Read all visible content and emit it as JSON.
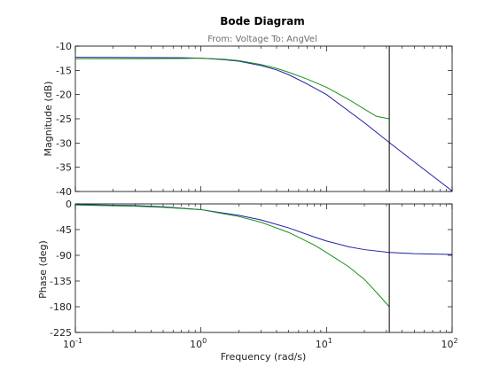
{
  "chart_data": {
    "type": "line",
    "title": "Bode Diagram",
    "subtitle": "From: Voltage  To: AngVel",
    "xlabel": "Frequency  (rad/s)",
    "xscale": "log",
    "xlim": [
      0.1,
      100
    ],
    "x_ticks": [
      {
        "base": "10",
        "exp": "-1",
        "value": 0.1
      },
      {
        "base": "10",
        "exp": "0",
        "value": 1
      },
      {
        "base": "10",
        "exp": "1",
        "value": 10
      },
      {
        "base": "10",
        "exp": "2",
        "value": 100
      }
    ],
    "marker_frequency": 31.6,
    "colors": {
      "blue": "#1f1fa8",
      "green": "#1a8f1a",
      "marker": "#000000",
      "axes": "#000000"
    },
    "panels": [
      {
        "id": "magnitude",
        "ylabel": "Magnitude (dB)",
        "ylim": [
          -40,
          -10
        ],
        "y_ticks": [
          "-10",
          "-15",
          "-20",
          "-25",
          "-30",
          "-35",
          "-40"
        ],
        "series": [
          {
            "color": "blue",
            "points": [
              [
                0.1,
                -12.3
              ],
              [
                0.3,
                -12.35
              ],
              [
                0.7,
                -12.4
              ],
              [
                1,
                -12.5
              ],
              [
                1.5,
                -12.8
              ],
              [
                2,
                -13.1
              ],
              [
                3,
                -14.0
              ],
              [
                4,
                -14.9
              ],
              [
                5,
                -15.9
              ],
              [
                7,
                -17.8
              ],
              [
                10,
                -20.0
              ],
              [
                15,
                -23.4
              ],
              [
                20,
                -25.8
              ],
              [
                31.6,
                -29.9
              ],
              [
                50,
                -33.9
              ],
              [
                100,
                -39.9
              ]
            ]
          },
          {
            "color": "green",
            "points": [
              [
                0.1,
                -12.6
              ],
              [
                0.3,
                -12.6
              ],
              [
                0.7,
                -12.55
              ],
              [
                1,
                -12.5
              ],
              [
                1.5,
                -12.7
              ],
              [
                2,
                -13.0
              ],
              [
                3,
                -13.8
              ],
              [
                4,
                -14.6
              ],
              [
                5,
                -15.4
              ],
              [
                7,
                -16.8
              ],
              [
                10,
                -18.5
              ],
              [
                15,
                -21.0
              ],
              [
                20,
                -23.0
              ],
              [
                25,
                -24.5
              ],
              [
                31.6,
                -25.0
              ]
            ]
          }
        ]
      },
      {
        "id": "phase",
        "ylabel": "Phase (deg)",
        "ylim": [
          -225,
          0
        ],
        "y_ticks": [
          "0",
          "-45",
          "-90",
          "-135",
          "-180",
          "-225"
        ],
        "series": [
          {
            "color": "blue",
            "points": [
              [
                0.1,
                -1
              ],
              [
                0.3,
                -3
              ],
              [
                0.5,
                -5
              ],
              [
                1,
                -10
              ],
              [
                2,
                -20
              ],
              [
                3,
                -28
              ],
              [
                5,
                -42
              ],
              [
                8,
                -58
              ],
              [
                10,
                -65
              ],
              [
                15,
                -75
              ],
              [
                20,
                -80
              ],
              [
                31.6,
                -85
              ],
              [
                50,
                -87
              ],
              [
                100,
                -88.5
              ]
            ]
          },
          {
            "color": "green",
            "points": [
              [
                0.1,
                -2
              ],
              [
                0.3,
                -4
              ],
              [
                0.5,
                -6
              ],
              [
                1,
                -10
              ],
              [
                2,
                -22
              ],
              [
                3,
                -32
              ],
              [
                5,
                -50
              ],
              [
                8,
                -72
              ],
              [
                10,
                -85
              ],
              [
                15,
                -110
              ],
              [
                20,
                -132
              ],
              [
                25,
                -155
              ],
              [
                31.6,
                -180
              ]
            ]
          }
        ]
      }
    ]
  }
}
